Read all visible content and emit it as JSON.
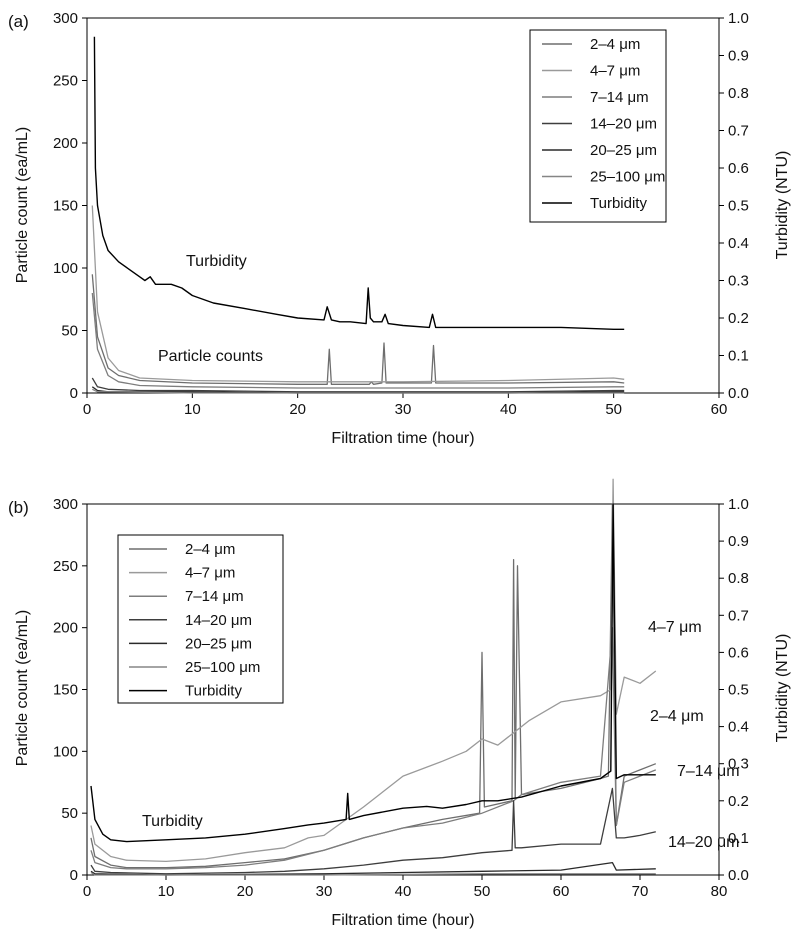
{
  "charts": [
    {
      "panel_label": "(a)",
      "xlabel": "Filtration time (hour)",
      "ylabel_left": "Particle count (ea/mL)",
      "ylabel_right": "Turbidity (NTU)",
      "x_ticks": [
        "0",
        "10",
        "20",
        "30",
        "40",
        "50",
        "60"
      ],
      "y_ticks": [
        "0",
        "50",
        "100",
        "150",
        "200",
        "250",
        "300"
      ],
      "yr_ticks": [
        "0.0",
        "0.1",
        "0.2",
        "0.3",
        "0.4",
        "0.5",
        "0.6",
        "0.7",
        "0.8",
        "0.9",
        "1.0"
      ],
      "legend": [
        "2–4 μm",
        "4–7 μm",
        "7–14 μm",
        "14–20 μm",
        "20–25 μm",
        "25–100 μm",
        "Turbidity"
      ],
      "annotations": [
        "Turbidity",
        "Particle counts"
      ]
    },
    {
      "panel_label": "(b)",
      "xlabel": "Filtration time (hour)",
      "ylabel_left": "Particle count (ea/mL)",
      "ylabel_right": "Turbidity (NTU)",
      "x_ticks": [
        "0",
        "10",
        "20",
        "30",
        "40",
        "50",
        "60",
        "70",
        "80"
      ],
      "y_ticks": [
        "0",
        "50",
        "100",
        "150",
        "200",
        "250",
        "300"
      ],
      "yr_ticks": [
        "0.0",
        "0.1",
        "0.2",
        "0.3",
        "0.4",
        "0.5",
        "0.6",
        "0.7",
        "0.8",
        "0.9",
        "1.0"
      ],
      "legend": [
        "2–4 μm",
        "4–7 μm",
        "7–14 μm",
        "14–20 μm",
        "20–25 μm",
        "25–100 μm",
        "Turbidity"
      ],
      "annotations": [
        "Turbidity",
        "4–7 μm",
        "2–4 μm",
        "7–14 μm",
        "14–20 μm"
      ]
    }
  ],
  "chart_data": [
    {
      "type": "line",
      "x_unit": "hour",
      "xlim": [
        0,
        60
      ],
      "ylim": [
        0,
        300
      ],
      "ylim_right": [
        0,
        1.0
      ],
      "grid": false,
      "legend_position": "top-right",
      "colors": [
        "#6e6e6e",
        "#9a9a9a",
        "#7d7d7d",
        "#3e3e3e",
        "#2a2a2a",
        "#858585",
        "#000000"
      ],
      "series": [
        {
          "name": "2–4 μm",
          "axis": "left",
          "x": [
            0.5,
            1,
            2,
            3,
            5,
            10,
            20,
            22.8,
            23,
            23.2,
            26.8,
            27,
            27.2,
            28,
            28.2,
            28.4,
            32.7,
            32.9,
            33.1,
            40,
            50,
            51
          ],
          "y": [
            95,
            45,
            20,
            14,
            10,
            8,
            7,
            7,
            35,
            7,
            7,
            9,
            7,
            8,
            40,
            8,
            8,
            38,
            8,
            8,
            9,
            8
          ]
        },
        {
          "name": "4–7 μm",
          "axis": "left",
          "x": [
            0.5,
            1,
            2,
            3,
            5,
            10,
            20,
            30,
            40,
            50,
            51
          ],
          "y": [
            150,
            65,
            28,
            18,
            12,
            10,
            9,
            9,
            10,
            12,
            11
          ]
        },
        {
          "name": "7–14 μm",
          "axis": "left",
          "x": [
            0.5,
            1,
            2,
            3,
            5,
            10,
            20,
            30,
            40,
            50,
            51
          ],
          "y": [
            80,
            35,
            14,
            9,
            6,
            5,
            4,
            4,
            4,
            5,
            5
          ]
        },
        {
          "name": "14–20 μm",
          "axis": "left",
          "x": [
            0.5,
            1,
            2,
            5,
            10,
            20,
            30,
            40,
            50,
            51
          ],
          "y": [
            12,
            5,
            3,
            2,
            2,
            1,
            1,
            1,
            2,
            2
          ]
        },
        {
          "name": "20–25 μm",
          "axis": "left",
          "x": [
            0.5,
            1,
            2,
            10,
            20,
            30,
            40,
            50,
            51
          ],
          "y": [
            5,
            2,
            1,
            1,
            0,
            0,
            0,
            1,
            1
          ]
        },
        {
          "name": "25–100 μm",
          "axis": "left",
          "x": [
            0.5,
            1,
            2,
            10,
            20,
            30,
            40,
            50,
            51
          ],
          "y": [
            3,
            1,
            1,
            0,
            0,
            0,
            0,
            0,
            0
          ]
        },
        {
          "name": "Turbidity",
          "axis": "right",
          "x": [
            0.7,
            0.8,
            1,
            1.5,
            2,
            3,
            4,
            5,
            5.5,
            6,
            6.5,
            7,
            8,
            9,
            10,
            12,
            15,
            18,
            20,
            22.5,
            22.8,
            23.2,
            24,
            25,
            26.5,
            26.7,
            26.9,
            27.2,
            28,
            28.3,
            28.6,
            30,
            32.5,
            32.8,
            33.1,
            35,
            40,
            45,
            50,
            51
          ],
          "y": [
            0.95,
            0.6,
            0.5,
            0.42,
            0.38,
            0.35,
            0.33,
            0.31,
            0.3,
            0.31,
            0.29,
            0.29,
            0.29,
            0.28,
            0.26,
            0.24,
            0.225,
            0.21,
            0.2,
            0.195,
            0.23,
            0.195,
            0.19,
            0.19,
            0.185,
            0.28,
            0.2,
            0.19,
            0.19,
            0.21,
            0.185,
            0.18,
            0.175,
            0.21,
            0.175,
            0.175,
            0.175,
            0.175,
            0.17,
            0.17
          ]
        }
      ]
    },
    {
      "type": "line",
      "x_unit": "hour",
      "xlim": [
        0,
        80
      ],
      "ylim": [
        0,
        300
      ],
      "ylim_right": [
        0,
        1.0
      ],
      "grid": false,
      "legend_position": "top-left",
      "colors": [
        "#6e6e6e",
        "#9a9a9a",
        "#7d7d7d",
        "#3e3e3e",
        "#2a2a2a",
        "#858585",
        "#000000"
      ],
      "series": [
        {
          "name": "2–4 μm",
          "axis": "left",
          "x": [
            0.5,
            1,
            3,
            5,
            10,
            15,
            20,
            25,
            30,
            35,
            40,
            45,
            49.7,
            50,
            50.3,
            53.8,
            54,
            54.2,
            54.5,
            55,
            60,
            65,
            66,
            66.5,
            67,
            68,
            70,
            72
          ],
          "y": [
            30,
            15,
            8,
            6,
            6,
            7,
            10,
            13,
            20,
            30,
            38,
            45,
            50,
            180,
            55,
            60,
            255,
            62,
            250,
            65,
            70,
            78,
            80,
            300,
            40,
            80,
            85,
            90
          ]
        },
        {
          "name": "4–7 μm",
          "axis": "left",
          "x": [
            0.5,
            1,
            3,
            5,
            10,
            15,
            20,
            25,
            28,
            30,
            35,
            40,
            45,
            48,
            50,
            52,
            54,
            56,
            60,
            65,
            66.3,
            66.6,
            67,
            68,
            70,
            72
          ],
          "y": [
            40,
            25,
            15,
            12,
            11,
            13,
            18,
            22,
            30,
            32,
            55,
            80,
            92,
            100,
            110,
            105,
            115,
            125,
            140,
            145,
            150,
            320,
            130,
            160,
            155,
            165
          ]
        },
        {
          "name": "7–14 μm",
          "axis": "left",
          "x": [
            0.5,
            1,
            3,
            5,
            10,
            15,
            20,
            25,
            30,
            35,
            40,
            45,
            50,
            54,
            55,
            60,
            65,
            66.5,
            67,
            68,
            70,
            72
          ],
          "y": [
            20,
            10,
            6,
            5,
            5,
            6,
            8,
            12,
            20,
            30,
            38,
            42,
            50,
            60,
            65,
            75,
            80,
            200,
            40,
            75,
            80,
            85
          ]
        },
        {
          "name": "14–20 μm",
          "axis": "left",
          "x": [
            0.5,
            1,
            3,
            10,
            20,
            25,
            30,
            35,
            40,
            45,
            50,
            53.8,
            54,
            54.2,
            55,
            60,
            65,
            66.5,
            67,
            68,
            70,
            72
          ],
          "y": [
            8,
            3,
            2,
            1,
            2,
            3,
            5,
            8,
            12,
            14,
            18,
            20,
            60,
            22,
            22,
            25,
            25,
            70,
            30,
            30,
            32,
            35
          ]
        },
        {
          "name": "20–25 μm",
          "axis": "left",
          "x": [
            0.5,
            1,
            10,
            30,
            40,
            50,
            60,
            66.5,
            67,
            72
          ],
          "y": [
            3,
            1,
            0,
            1,
            2,
            3,
            4,
            10,
            4,
            5
          ]
        },
        {
          "name": "25–100 μm",
          "axis": "left",
          "x": [
            0.5,
            1,
            10,
            30,
            50,
            72
          ],
          "y": [
            2,
            0,
            0,
            0,
            1,
            1
          ]
        },
        {
          "name": "Turbidity",
          "axis": "right",
          "x": [
            0.5,
            1,
            2,
            3,
            5,
            10,
            15,
            20,
            25,
            28,
            30,
            32.8,
            33,
            33.2,
            35,
            40,
            43,
            45,
            48,
            50,
            52,
            55,
            60,
            65,
            66.3,
            66.6,
            67,
            68,
            70,
            72
          ],
          "y": [
            0.24,
            0.15,
            0.11,
            0.095,
            0.09,
            0.095,
            0.1,
            0.11,
            0.125,
            0.135,
            0.14,
            0.15,
            0.22,
            0.15,
            0.16,
            0.18,
            0.185,
            0.18,
            0.19,
            0.2,
            0.2,
            0.21,
            0.24,
            0.26,
            0.28,
            1.0,
            0.26,
            0.27,
            0.27,
            0.27
          ]
        }
      ]
    }
  ]
}
